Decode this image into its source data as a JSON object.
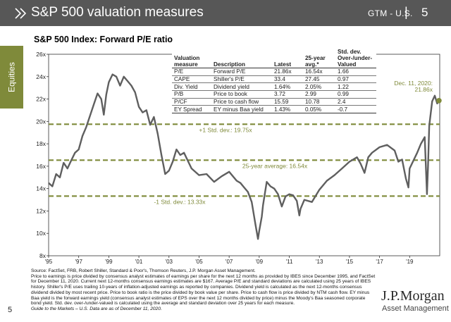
{
  "header": {
    "title": "S&P 500 valuation measures",
    "tag": "GTM - U.S.",
    "separator": "|",
    "page_number": "5"
  },
  "sidebar": {
    "label": "Equities"
  },
  "chart_title": "S&P 500 Index: Forward P/E ratio",
  "table": {
    "columns": [
      "Valuation measure",
      "Description",
      "Latest",
      "25-year avg.*",
      "Std. dev. Over-/under- Valued"
    ],
    "rows": [
      [
        "P/E",
        "Forward P/E",
        "21.86x",
        "16.54x",
        "1.66"
      ],
      [
        "CAPE",
        "Shiller's P/E",
        "33.4",
        "27.45",
        "0.97"
      ],
      [
        "Div. Yield",
        "Dividend yield",
        "1.64%",
        "2.05%",
        "1.22"
      ],
      [
        "P/B",
        "Price to book",
        "3.72",
        "2.99",
        "0.99"
      ],
      [
        "P/CF",
        "Price to cash flow",
        "15.59",
        "10.78",
        "2.4"
      ],
      [
        "EY Spread",
        "EY minus Baa yield",
        "1.43%",
        "0.05%",
        "-0.7"
      ]
    ]
  },
  "annotations": {
    "plus_std": "+1 Std. dev.: 19.75x",
    "avg": "25-year average: 16.54x",
    "minus_std": "-1 Std. dev.: 13.33x",
    "latest_date": "Dec. 11, 2020:",
    "latest_value": "21.86x"
  },
  "chart_data": {
    "type": "line",
    "title": "S&P 500 Index: Forward P/E ratio",
    "xlabel": "",
    "ylabel": "",
    "ylim": [
      8,
      26
    ],
    "yticks": [
      "8x",
      "10x",
      "12x",
      "14x",
      "16x",
      "18x",
      "20x",
      "22x",
      "24x",
      "26x"
    ],
    "xlim": [
      1995,
      2021
    ],
    "xticks": [
      "'95",
      "'97",
      "'99",
      "'01",
      "'03",
      "'05",
      "'07",
      "'09",
      "'11",
      "'13",
      "'15",
      "'17",
      "'19"
    ],
    "reference_lines": [
      {
        "label": "+1 Std. dev.: 19.75x",
        "value": 19.75
      },
      {
        "label": "25-year average: 16.54x",
        "value": 16.54
      },
      {
        "label": "-1 Std. dev.: 13.33x",
        "value": 13.33
      }
    ],
    "series": [
      {
        "name": "",
        "x": [
          1995.0,
          1995.25,
          1995.5,
          1995.75,
          1996.0,
          1996.25,
          1996.5,
          1996.75,
          1997.0,
          1997.25,
          1997.5,
          1997.75,
          1998.0,
          1998.25,
          1998.5,
          1998.67,
          1998.83,
          1999.0,
          1999.25,
          1999.5,
          1999.75,
          2000.0,
          2000.25,
          2000.5,
          2000.75,
          2001.0,
          2001.25,
          2001.5,
          2001.75,
          2002.0,
          2002.25,
          2002.5,
          2002.75,
          2003.0,
          2003.25,
          2003.5,
          2003.75,
          2004.0,
          2004.5,
          2005.0,
          2005.5,
          2006.0,
          2006.5,
          2007.0,
          2007.5,
          2007.75,
          2008.0,
          2008.25,
          2008.5,
          2008.75,
          2008.92,
          2009.0,
          2009.17,
          2009.25,
          2009.5,
          2009.75,
          2010.0,
          2010.25,
          2010.5,
          2010.75,
          2011.0,
          2011.25,
          2011.5,
          2011.67,
          2011.75,
          2012.0,
          2012.5,
          2013.0,
          2013.5,
          2014.0,
          2014.5,
          2015.0,
          2015.5,
          2015.75,
          2016.0,
          2016.25,
          2016.5,
          2017.0,
          2017.5,
          2018.0,
          2018.25,
          2018.5,
          2018.75,
          2018.92,
          2019.0,
          2019.5,
          2019.75,
          2020.0,
          2020.15,
          2020.22,
          2020.3,
          2020.5,
          2020.67,
          2020.83,
          2020.95
        ],
        "y": [
          14.5,
          14.2,
          15.3,
          15.0,
          16.3,
          15.8,
          16.5,
          17.2,
          17.5,
          18.7,
          19.5,
          20.5,
          21.5,
          22.5,
          22.0,
          20.6,
          22.4,
          23.5,
          24.2,
          24.0,
          23.2,
          24.0,
          23.6,
          23.2,
          22.6,
          21.3,
          20.8,
          21.0,
          19.7,
          20.4,
          18.9,
          17.0,
          15.3,
          15.6,
          16.4,
          17.5,
          17.0,
          17.2,
          15.8,
          15.2,
          15.3,
          14.6,
          15.1,
          15.5,
          14.7,
          14.5,
          14.1,
          13.7,
          12.8,
          10.8,
          9.5,
          10.2,
          11.5,
          12.5,
          14.6,
          14.2,
          14.0,
          13.5,
          12.4,
          13.3,
          13.5,
          13.4,
          12.9,
          11.6,
          12.2,
          13.0,
          12.8,
          13.9,
          14.7,
          15.2,
          15.8,
          16.4,
          16.8,
          16.2,
          15.4,
          16.8,
          17.2,
          17.7,
          17.9,
          17.4,
          16.4,
          16.6,
          14.9,
          14.1,
          15.8,
          17.2,
          18.0,
          18.6,
          13.5,
          16.0,
          19.6,
          21.8,
          22.3,
          21.6,
          21.86
        ]
      }
    ]
  },
  "footnote": {
    "sources": "Source: FactSet, FRB, Robert Shiller, Standard & Poor's, Thomson Reuters, J.P. Morgan Asset Management.",
    "body": "Price to earnings is price divided by consensus analyst estimates of earnings per share for the next 12 months as provided by IBES since December 1995, and FactSet for December 11, 2020. Current next 12-months consensus earnings estimates are $167. Average P/E and standard deviations are calculated using 25 years of IBES history. Shiller's P/E uses trailing 10-years of inflation-adjusted earnings as reported by companies. Dividend yield is calculated as the next 12-months consensus dividend divided by most recent price. Price to book ratio is the price divided by book value per share. Price to cash flow is price divided by NTM cash flow. EY minus Baa yield is the forward earnings yield (consensus analyst estimates of EPS over the next 12 months divided by price) minus the Moody's Baa seasoned corporate bond yield. Std. dev. over-/under-valued is calculated using the average and standard deviation over 25 years for each measure.",
    "guide": "Guide to the Markets – U.S. Data are as of December 11, 2020."
  },
  "brand": {
    "name": "J.P.Morgan",
    "subtitle": "Asset Management"
  },
  "footer_page_number": "5",
  "colors": {
    "header": "#575757",
    "sidebar": "#7f8a3a",
    "line": "#5f5f5f",
    "reference": "#7f8a3a",
    "latest_label": "#7f8a3a"
  }
}
